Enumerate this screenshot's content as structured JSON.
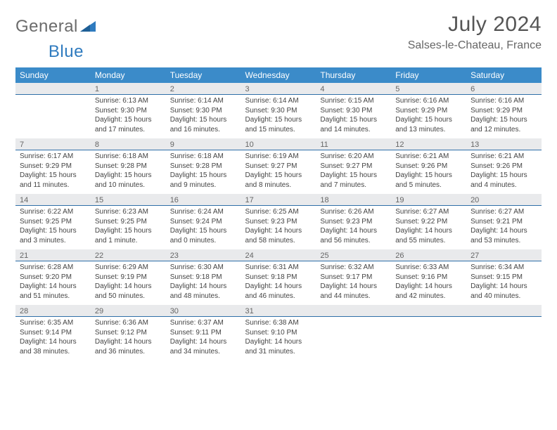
{
  "brand": {
    "part1": "General",
    "part2": "Blue"
  },
  "title": "July 2024",
  "location": "Salses-le-Chateau, France",
  "colors": {
    "header_bg": "#3b8bc9",
    "header_text": "#ffffff",
    "daybar_bg": "#e9eaec",
    "daybar_border": "#2f6fa8",
    "text": "#444444",
    "title_text": "#555555",
    "location_text": "#666666",
    "logo_gray": "#6b6b6b",
    "logo_blue": "#2f7bbf",
    "page_bg": "#ffffff"
  },
  "typography": {
    "title_fontsize": 30,
    "location_fontsize": 16,
    "header_fontsize": 12,
    "daynum_fontsize": 11,
    "cell_fontsize": 10
  },
  "day_headers": [
    "Sunday",
    "Monday",
    "Tuesday",
    "Wednesday",
    "Thursday",
    "Friday",
    "Saturday"
  ],
  "weeks": [
    [
      {
        "num": "",
        "sunrise": "",
        "sunset": "",
        "daylight": ""
      },
      {
        "num": "1",
        "sunrise": "Sunrise: 6:13 AM",
        "sunset": "Sunset: 9:30 PM",
        "daylight": "Daylight: 15 hours and 17 minutes."
      },
      {
        "num": "2",
        "sunrise": "Sunrise: 6:14 AM",
        "sunset": "Sunset: 9:30 PM",
        "daylight": "Daylight: 15 hours and 16 minutes."
      },
      {
        "num": "3",
        "sunrise": "Sunrise: 6:14 AM",
        "sunset": "Sunset: 9:30 PM",
        "daylight": "Daylight: 15 hours and 15 minutes."
      },
      {
        "num": "4",
        "sunrise": "Sunrise: 6:15 AM",
        "sunset": "Sunset: 9:30 PM",
        "daylight": "Daylight: 15 hours and 14 minutes."
      },
      {
        "num": "5",
        "sunrise": "Sunrise: 6:16 AM",
        "sunset": "Sunset: 9:29 PM",
        "daylight": "Daylight: 15 hours and 13 minutes."
      },
      {
        "num": "6",
        "sunrise": "Sunrise: 6:16 AM",
        "sunset": "Sunset: 9:29 PM",
        "daylight": "Daylight: 15 hours and 12 minutes."
      }
    ],
    [
      {
        "num": "7",
        "sunrise": "Sunrise: 6:17 AM",
        "sunset": "Sunset: 9:29 PM",
        "daylight": "Daylight: 15 hours and 11 minutes."
      },
      {
        "num": "8",
        "sunrise": "Sunrise: 6:18 AM",
        "sunset": "Sunset: 9:28 PM",
        "daylight": "Daylight: 15 hours and 10 minutes."
      },
      {
        "num": "9",
        "sunrise": "Sunrise: 6:18 AM",
        "sunset": "Sunset: 9:28 PM",
        "daylight": "Daylight: 15 hours and 9 minutes."
      },
      {
        "num": "10",
        "sunrise": "Sunrise: 6:19 AM",
        "sunset": "Sunset: 9:27 PM",
        "daylight": "Daylight: 15 hours and 8 minutes."
      },
      {
        "num": "11",
        "sunrise": "Sunrise: 6:20 AM",
        "sunset": "Sunset: 9:27 PM",
        "daylight": "Daylight: 15 hours and 7 minutes."
      },
      {
        "num": "12",
        "sunrise": "Sunrise: 6:21 AM",
        "sunset": "Sunset: 9:26 PM",
        "daylight": "Daylight: 15 hours and 5 minutes."
      },
      {
        "num": "13",
        "sunrise": "Sunrise: 6:21 AM",
        "sunset": "Sunset: 9:26 PM",
        "daylight": "Daylight: 15 hours and 4 minutes."
      }
    ],
    [
      {
        "num": "14",
        "sunrise": "Sunrise: 6:22 AM",
        "sunset": "Sunset: 9:25 PM",
        "daylight": "Daylight: 15 hours and 3 minutes."
      },
      {
        "num": "15",
        "sunrise": "Sunrise: 6:23 AM",
        "sunset": "Sunset: 9:25 PM",
        "daylight": "Daylight: 15 hours and 1 minute."
      },
      {
        "num": "16",
        "sunrise": "Sunrise: 6:24 AM",
        "sunset": "Sunset: 9:24 PM",
        "daylight": "Daylight: 15 hours and 0 minutes."
      },
      {
        "num": "17",
        "sunrise": "Sunrise: 6:25 AM",
        "sunset": "Sunset: 9:23 PM",
        "daylight": "Daylight: 14 hours and 58 minutes."
      },
      {
        "num": "18",
        "sunrise": "Sunrise: 6:26 AM",
        "sunset": "Sunset: 9:23 PM",
        "daylight": "Daylight: 14 hours and 56 minutes."
      },
      {
        "num": "19",
        "sunrise": "Sunrise: 6:27 AM",
        "sunset": "Sunset: 9:22 PM",
        "daylight": "Daylight: 14 hours and 55 minutes."
      },
      {
        "num": "20",
        "sunrise": "Sunrise: 6:27 AM",
        "sunset": "Sunset: 9:21 PM",
        "daylight": "Daylight: 14 hours and 53 minutes."
      }
    ],
    [
      {
        "num": "21",
        "sunrise": "Sunrise: 6:28 AM",
        "sunset": "Sunset: 9:20 PM",
        "daylight": "Daylight: 14 hours and 51 minutes."
      },
      {
        "num": "22",
        "sunrise": "Sunrise: 6:29 AM",
        "sunset": "Sunset: 9:19 PM",
        "daylight": "Daylight: 14 hours and 50 minutes."
      },
      {
        "num": "23",
        "sunrise": "Sunrise: 6:30 AM",
        "sunset": "Sunset: 9:18 PM",
        "daylight": "Daylight: 14 hours and 48 minutes."
      },
      {
        "num": "24",
        "sunrise": "Sunrise: 6:31 AM",
        "sunset": "Sunset: 9:18 PM",
        "daylight": "Daylight: 14 hours and 46 minutes."
      },
      {
        "num": "25",
        "sunrise": "Sunrise: 6:32 AM",
        "sunset": "Sunset: 9:17 PM",
        "daylight": "Daylight: 14 hours and 44 minutes."
      },
      {
        "num": "26",
        "sunrise": "Sunrise: 6:33 AM",
        "sunset": "Sunset: 9:16 PM",
        "daylight": "Daylight: 14 hours and 42 minutes."
      },
      {
        "num": "27",
        "sunrise": "Sunrise: 6:34 AM",
        "sunset": "Sunset: 9:15 PM",
        "daylight": "Daylight: 14 hours and 40 minutes."
      }
    ],
    [
      {
        "num": "28",
        "sunrise": "Sunrise: 6:35 AM",
        "sunset": "Sunset: 9:14 PM",
        "daylight": "Daylight: 14 hours and 38 minutes."
      },
      {
        "num": "29",
        "sunrise": "Sunrise: 6:36 AM",
        "sunset": "Sunset: 9:12 PM",
        "daylight": "Daylight: 14 hours and 36 minutes."
      },
      {
        "num": "30",
        "sunrise": "Sunrise: 6:37 AM",
        "sunset": "Sunset: 9:11 PM",
        "daylight": "Daylight: 14 hours and 34 minutes."
      },
      {
        "num": "31",
        "sunrise": "Sunrise: 6:38 AM",
        "sunset": "Sunset: 9:10 PM",
        "daylight": "Daylight: 14 hours and 31 minutes."
      },
      {
        "num": "",
        "sunrise": "",
        "sunset": "",
        "daylight": ""
      },
      {
        "num": "",
        "sunrise": "",
        "sunset": "",
        "daylight": ""
      },
      {
        "num": "",
        "sunrise": "",
        "sunset": "",
        "daylight": ""
      }
    ]
  ]
}
